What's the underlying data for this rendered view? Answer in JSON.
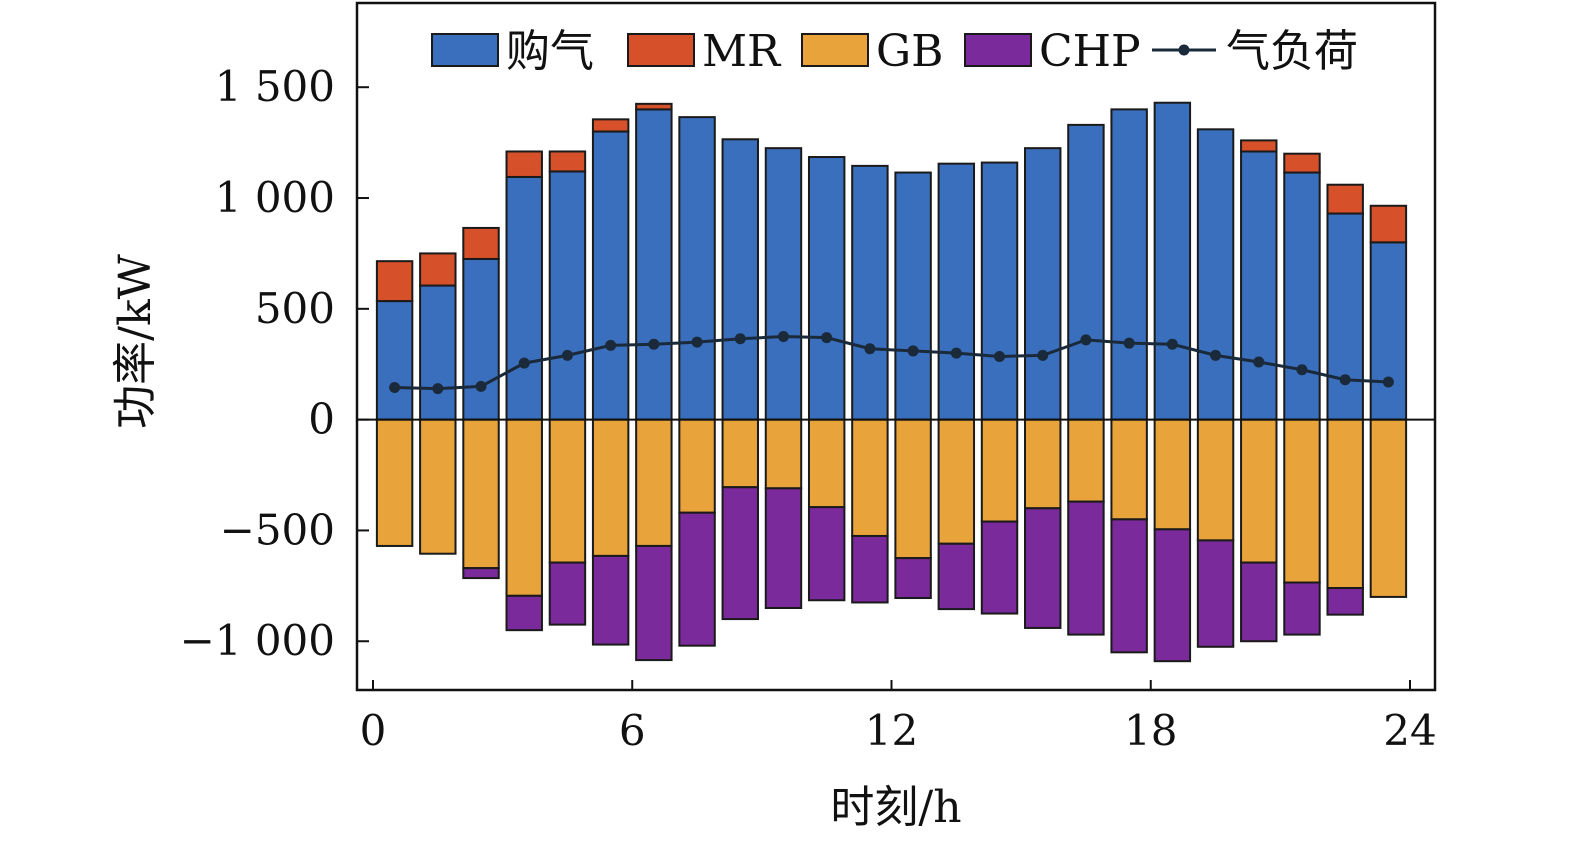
{
  "chart_data": {
    "type": "bar",
    "xlabel": "时刻/h",
    "ylabel": "功率/kW",
    "xlim": [
      0,
      24
    ],
    "ylim": [
      -1220,
      1880
    ],
    "x_ticks": [
      0,
      6,
      12,
      18,
      24
    ],
    "x_tick_labels": [
      "0",
      "6",
      "12",
      "18",
      "24"
    ],
    "y_ticks": [
      -1000,
      -500,
      0,
      500,
      1000,
      1500
    ],
    "y_tick_labels": [
      "−1 000",
      "−500",
      "0",
      "500",
      "1 000",
      "1 500"
    ],
    "legend_position": "top",
    "hours": [
      0.5,
      1.5,
      2.5,
      3.5,
      4.5,
      5.5,
      6.5,
      7.5,
      8.5,
      9.5,
      10.5,
      11.5,
      12.5,
      13.5,
      14.5,
      15.5,
      16.5,
      17.5,
      18.5,
      19.5,
      20.5,
      21.5,
      22.5,
      23.5
    ],
    "series": [
      {
        "name": "购气",
        "color": "#3a6fbd",
        "values": [
          535,
          605,
          725,
          1095,
          1120,
          1300,
          1400,
          1365,
          1265,
          1225,
          1185,
          1145,
          1115,
          1155,
          1160,
          1225,
          1330,
          1400,
          1430,
          1310,
          1210,
          1115,
          930,
          800
        ]
      },
      {
        "name": "MR",
        "color": "#d6502a",
        "values": [
          180,
          145,
          140,
          115,
          90,
          55,
          25,
          0,
          0,
          0,
          0,
          0,
          0,
          0,
          0,
          0,
          0,
          0,
          0,
          0,
          50,
          85,
          130,
          165
        ]
      },
      {
        "name": "GB",
        "color": "#e8a33a",
        "values": [
          -570,
          -605,
          -670,
          -795,
          -645,
          -615,
          -570,
          -420,
          -305,
          -310,
          -395,
          -525,
          -625,
          -560,
          -460,
          -400,
          -370,
          -450,
          -495,
          -545,
          -645,
          -735,
          -760,
          -800
        ]
      },
      {
        "name": "CHP",
        "color": "#7a2a9a",
        "values": [
          0,
          0,
          -45,
          -155,
          -280,
          -400,
          -515,
          -600,
          -595,
          -540,
          -420,
          -300,
          -180,
          -295,
          -415,
          -540,
          -600,
          -600,
          -595,
          -480,
          -355,
          -235,
          -120,
          0
        ]
      },
      {
        "name": "气负荷",
        "color": "#1a2a3a",
        "type": "line",
        "values": [
          145,
          140,
          150,
          255,
          290,
          335,
          340,
          350,
          365,
          375,
          370,
          320,
          310,
          300,
          285,
          290,
          360,
          345,
          340,
          290,
          260,
          225,
          180,
          170
        ]
      }
    ]
  }
}
